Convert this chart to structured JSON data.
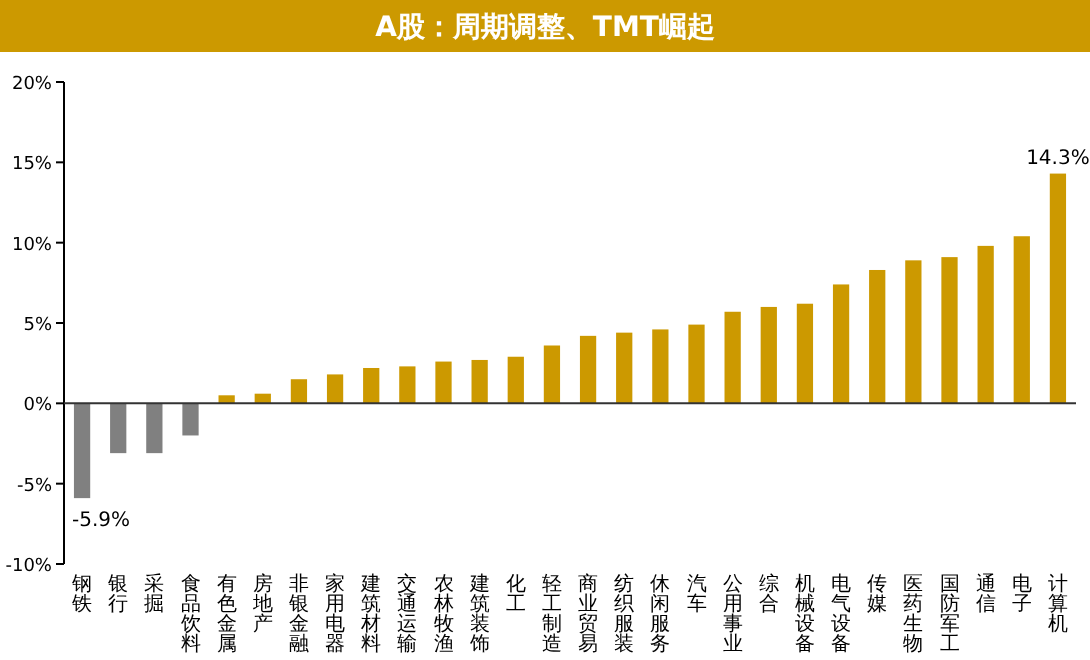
{
  "chart_data": {
    "type": "bar",
    "title": "A股：周期调整、TMT崛起",
    "categories": [
      "钢铁",
      "银行",
      "采掘",
      "食品饮料",
      "有色金属",
      "房地产",
      "非银金融",
      "家用电器",
      "建筑材料",
      "交通运输",
      "农林牧渔",
      "建筑装饰",
      "化工",
      "轻工制造",
      "商业贸易",
      "纺织服装",
      "休闲服务",
      "汽车",
      "公用事业",
      "综合",
      "机械设备",
      "电气设备",
      "传媒",
      "医药生物",
      "国防军工",
      "通信",
      "电子",
      "计算机"
    ],
    "values": [
      -5.9,
      -3.1,
      -3.1,
      -2.0,
      0.5,
      0.6,
      1.5,
      1.8,
      2.2,
      2.3,
      2.6,
      2.7,
      2.9,
      3.6,
      4.2,
      4.4,
      4.6,
      4.9,
      5.7,
      6.0,
      6.2,
      7.4,
      8.3,
      8.9,
      9.1,
      9.8,
      10.4,
      14.3
    ],
    "colors": [
      "#808080",
      "#808080",
      "#808080",
      "#808080",
      "#cc9900",
      "#cc9900",
      "#cc9900",
      "#cc9900",
      "#cc9900",
      "#cc9900",
      "#cc9900",
      "#cc9900",
      "#cc9900",
      "#cc9900",
      "#cc9900",
      "#cc9900",
      "#cc9900",
      "#cc9900",
      "#cc9900",
      "#cc9900",
      "#cc9900",
      "#cc9900",
      "#cc9900",
      "#cc9900",
      "#cc9900",
      "#cc9900",
      "#cc9900",
      "#cc9900"
    ],
    "value_labels": [
      "-5.9%",
      null,
      null,
      null,
      null,
      null,
      null,
      null,
      null,
      null,
      null,
      null,
      null,
      null,
      null,
      null,
      null,
      null,
      null,
      null,
      null,
      null,
      null,
      null,
      null,
      null,
      null,
      "14.3%"
    ],
    "ylim": [
      -10,
      20
    ],
    "yticks": [
      {
        "value": -10,
        "label": "-10%"
      },
      {
        "value": -5,
        "label": "-5%"
      },
      {
        "value": 0,
        "label": "0%"
      },
      {
        "value": 5,
        "label": "5%"
      },
      {
        "value": 10,
        "label": "10%"
      },
      {
        "value": 15,
        "label": "15%"
      },
      {
        "value": 20,
        "label": "20%"
      }
    ],
    "data_labels": false
  }
}
